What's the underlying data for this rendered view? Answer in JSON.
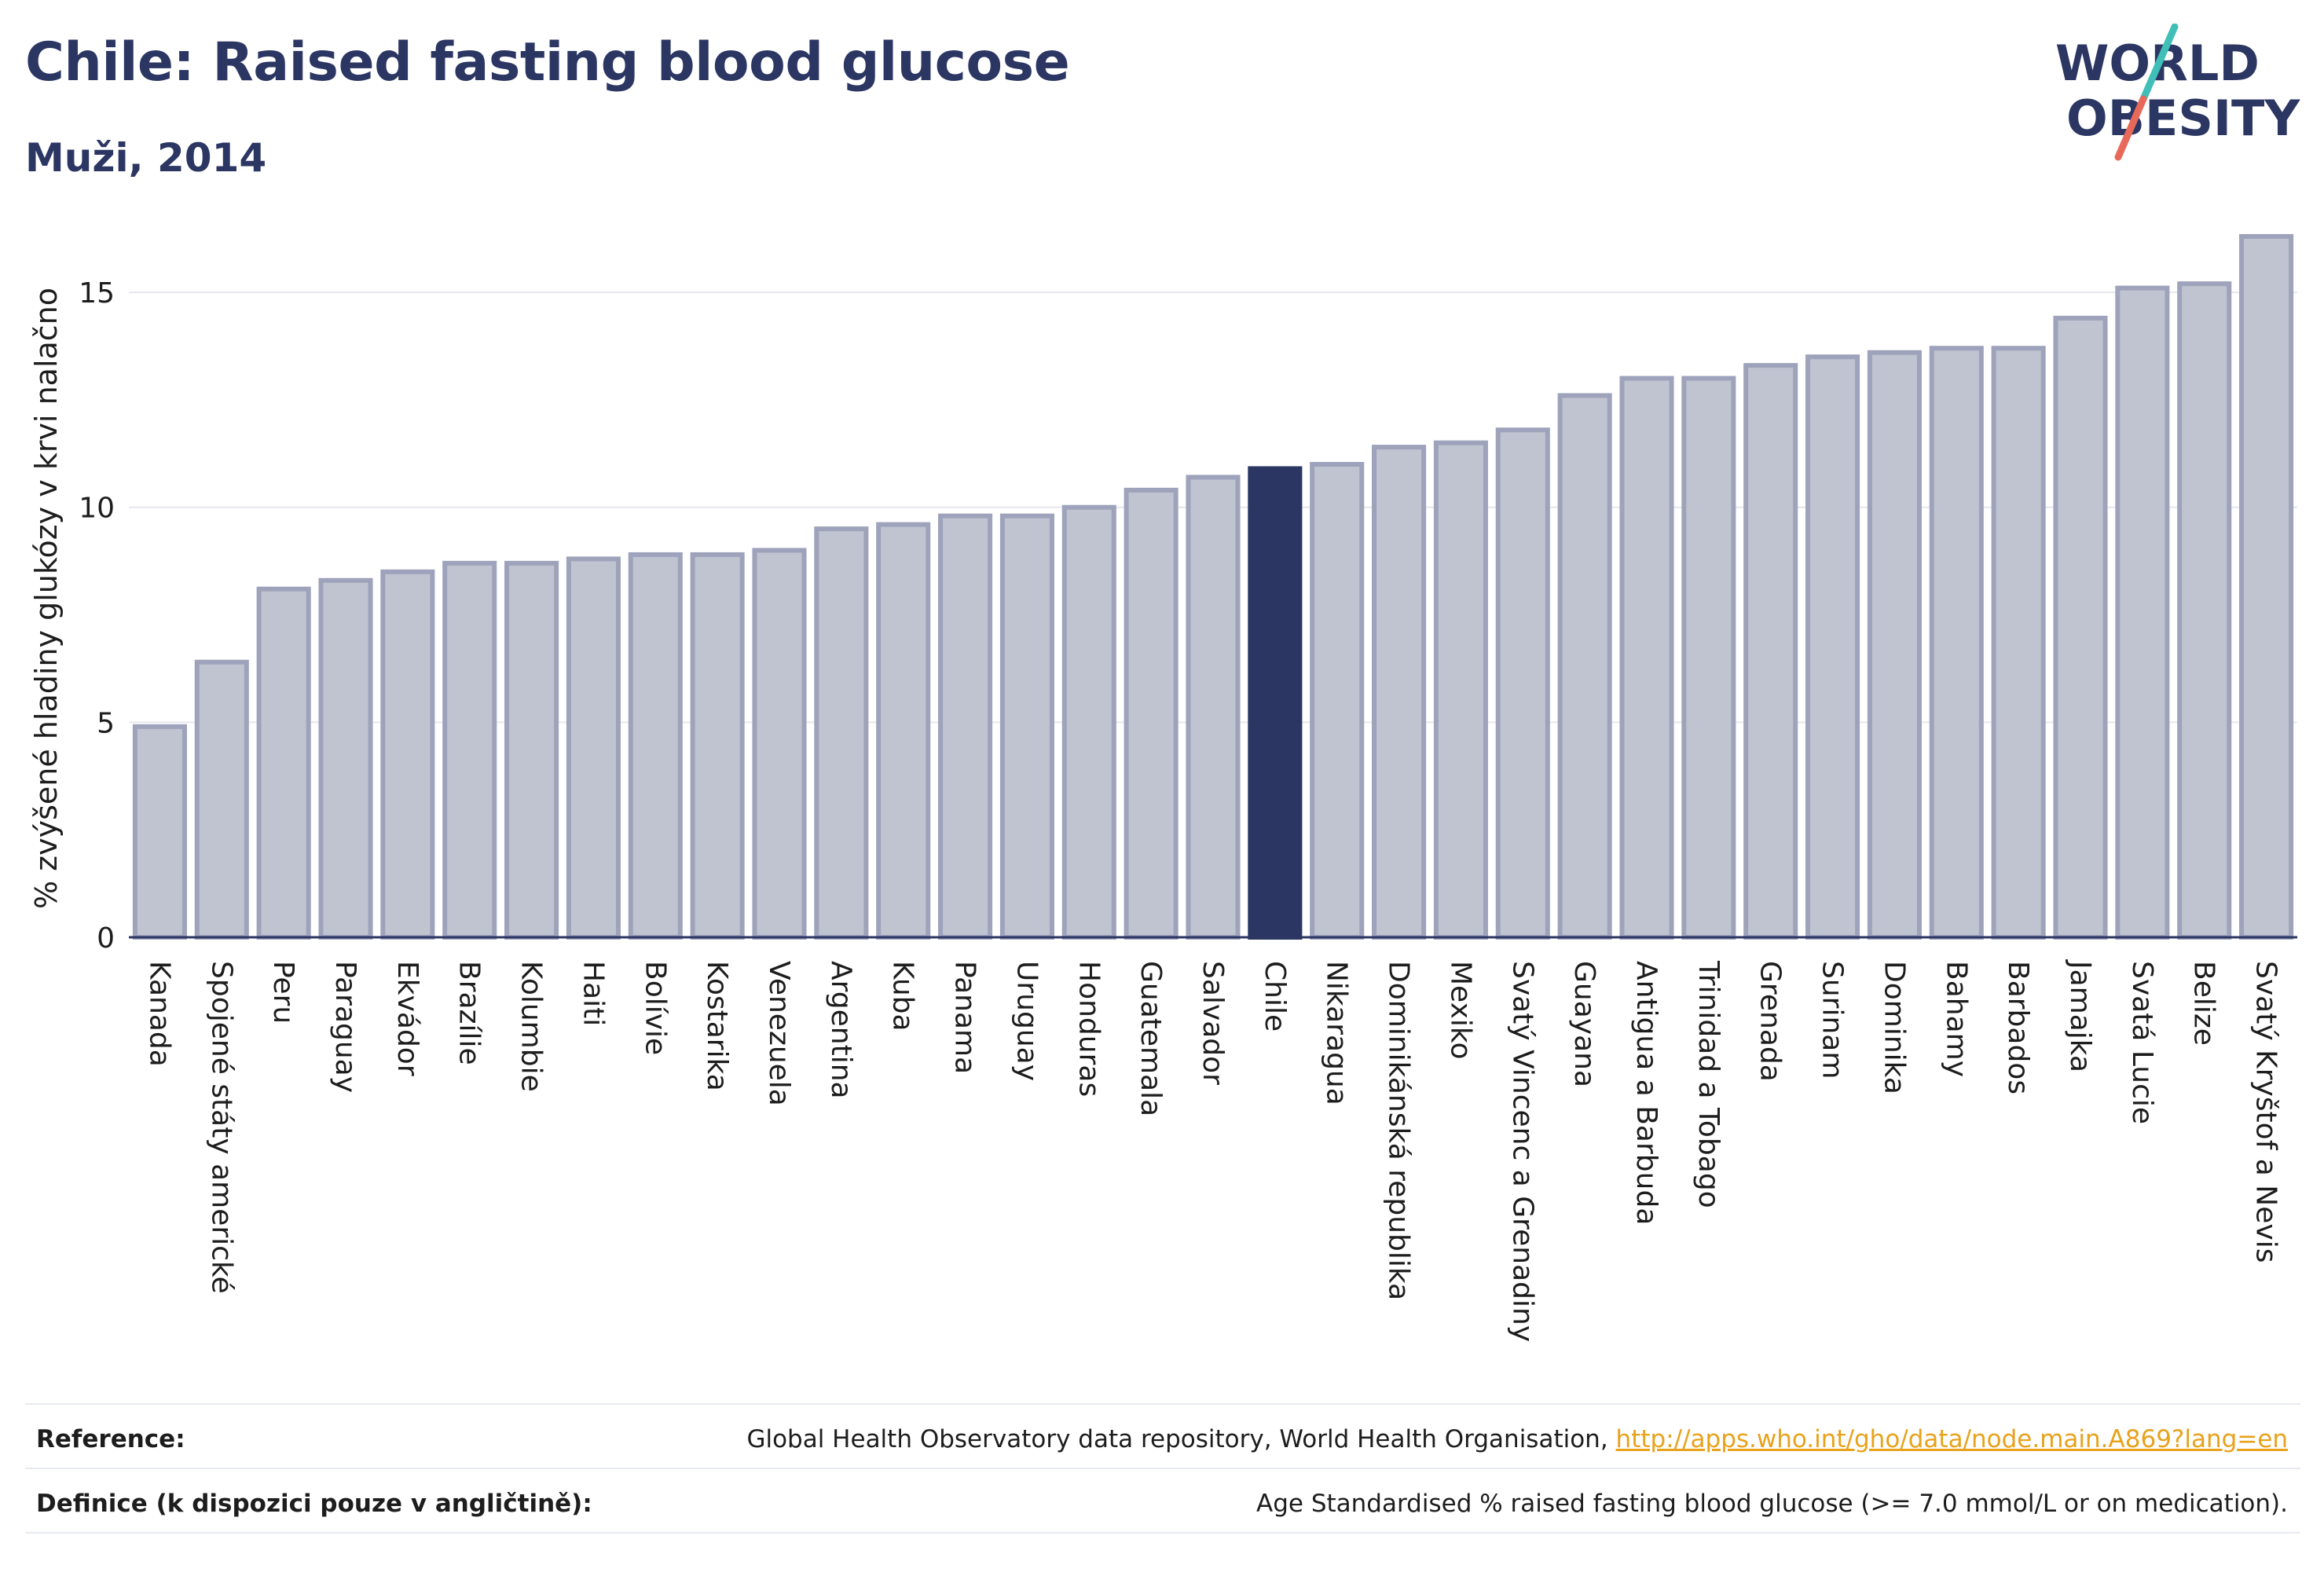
{
  "header": {
    "title": "Chile: Raised fasting blood glucose",
    "subtitle": "Muži, 2014"
  },
  "logo": {
    "line1": "WORLD",
    "line2": "OBESITY",
    "slash_color_top": "#3fbfb7",
    "slash_color_bottom": "#e8695a",
    "text_color": "#2b3663"
  },
  "chart_data": {
    "type": "bar",
    "title": "",
    "xlabel": "",
    "ylabel": "% zvýšené hladiny glukózy v krvi nalačno",
    "ylim": [
      0,
      16.5
    ],
    "yticks": [
      0,
      5,
      10,
      15
    ],
    "grid": true,
    "highlight_category": "Chile",
    "colors": {
      "bar_fill": "#c0c3d0",
      "bar_stroke": "#9ea3bb",
      "highlight": "#2b3663",
      "grid": "#e6e7ee",
      "axis": "#2b3663"
    },
    "categories": [
      "Kanada",
      "Spojené státy americké",
      "Peru",
      "Paraguay",
      "Ekvádor",
      "Brazílie",
      "Kolumbie",
      "Haiti",
      "Bolívie",
      "Kostarika",
      "Venezuela",
      "Argentina",
      "Kuba",
      "Panama",
      "Uruguay",
      "Honduras",
      "Guatemala",
      "Salvador",
      "Chile",
      "Nikaragua",
      "Dominikánská republika",
      "Mexiko",
      "Svatý Vincenc a Grenadiny",
      "Guayana",
      "Antigua a Barbuda",
      "Trinidad a Tobago",
      "Grenada",
      "Surinam",
      "Dominika",
      "Bahamy",
      "Barbados",
      "Jamajka",
      "Svatá Lucie",
      "Belize",
      "Svatý Kryštof a Nevis"
    ],
    "values": [
      4.9,
      6.4,
      8.1,
      8.3,
      8.5,
      8.7,
      8.7,
      8.8,
      8.9,
      8.9,
      9.0,
      9.5,
      9.6,
      9.8,
      9.8,
      10.0,
      10.4,
      10.7,
      10.9,
      11.0,
      11.4,
      11.5,
      11.8,
      12.6,
      13.0,
      13.0,
      13.3,
      13.5,
      13.6,
      13.7,
      13.7,
      14.4,
      15.1,
      15.2,
      16.3
    ]
  },
  "footer": {
    "reference_label": "Reference:",
    "reference_text": "Global Health Observatory data repository, World Health Organisation, ",
    "reference_link": "http://apps.who.int/gho/data/node.main.A869?lang=en",
    "definition_label": "Definice (k dispozici pouze v angličtině):",
    "definition_text": "Age Standardised % raised fasting blood glucose (>= 7.0 mmol/L or on medication)."
  }
}
